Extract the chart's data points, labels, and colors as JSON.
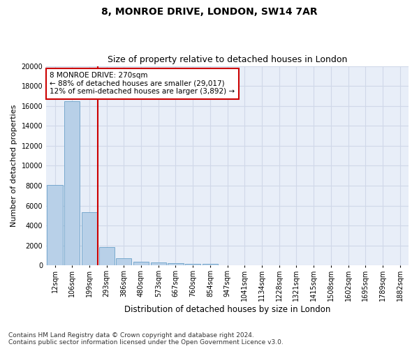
{
  "title1": "8, MONROE DRIVE, LONDON, SW14 7AR",
  "title2": "Size of property relative to detached houses in London",
  "xlabel": "Distribution of detached houses by size in London",
  "ylabel": "Number of detached properties",
  "bar_color": "#b8d0e8",
  "bar_edge_color": "#6aa0c8",
  "vline_color": "#cc0000",
  "vline_x": 2.5,
  "annotation_text": "8 MONROE DRIVE: 270sqm\n← 88% of detached houses are smaller (29,017)\n12% of semi-detached houses are larger (3,892) →",
  "annotation_box_color": "#ffffff",
  "annotation_box_edge": "#cc0000",
  "categories": [
    "12sqm",
    "106sqm",
    "199sqm",
    "293sqm",
    "386sqm",
    "480sqm",
    "573sqm",
    "667sqm",
    "760sqm",
    "854sqm",
    "947sqm",
    "1041sqm",
    "1134sqm",
    "1228sqm",
    "1321sqm",
    "1415sqm",
    "1508sqm",
    "1602sqm",
    "1695sqm",
    "1789sqm",
    "1882sqm"
  ],
  "values": [
    8100,
    16500,
    5350,
    1850,
    700,
    380,
    290,
    220,
    190,
    180,
    0,
    0,
    0,
    0,
    0,
    0,
    0,
    0,
    0,
    0,
    0
  ],
  "ylim": [
    0,
    20000
  ],
  "yticks": [
    0,
    2000,
    4000,
    6000,
    8000,
    10000,
    12000,
    14000,
    16000,
    18000,
    20000
  ],
  "grid_color": "#d0d8e8",
  "bg_color": "#e8eef8",
  "footnote": "Contains HM Land Registry data © Crown copyright and database right 2024.\nContains public sector information licensed under the Open Government Licence v3.0.",
  "title1_fontsize": 10,
  "title2_fontsize": 9,
  "xlabel_fontsize": 8.5,
  "ylabel_fontsize": 8,
  "tick_fontsize": 7,
  "annot_fontsize": 7.5,
  "footnote_fontsize": 6.5
}
